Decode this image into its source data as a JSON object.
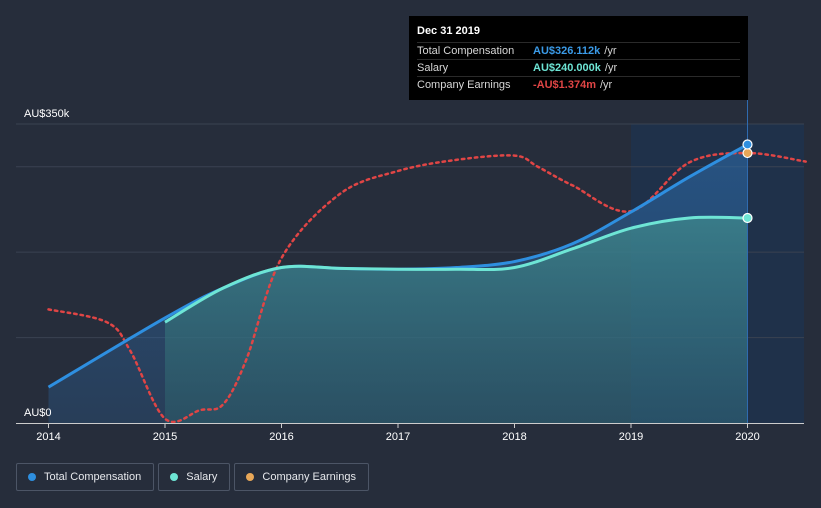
{
  "tooltip": {
    "date": "Dec 31 2019",
    "rows": [
      {
        "label": "Total Compensation",
        "value": "AU$326.112k",
        "unit": "/yr",
        "color": "#3b9be8"
      },
      {
        "label": "Salary",
        "value": "AU$240.000k",
        "unit": "/yr",
        "color": "#6ee5d5"
      },
      {
        "label": "Company Earnings",
        "value": "-AU$1.374m",
        "unit": "/yr",
        "color": "#e04545"
      }
    ]
  },
  "legend": [
    {
      "label": "Total Compensation",
      "color": "#2e8fe0"
    },
    {
      "label": "Salary",
      "color": "#6ee5d5"
    },
    {
      "label": "Company Earnings",
      "color": "#e8a758"
    }
  ],
  "chart_data": {
    "type": "line",
    "title": "",
    "xlabel": "",
    "ylabel": "",
    "y_labels": [
      "AU$350k",
      "AU$0"
    ],
    "ylim": [
      0,
      350
    ],
    "xlim": [
      2014,
      2020.5
    ],
    "x_ticks": [
      "2014",
      "2015",
      "2016",
      "2017",
      "2018",
      "2019",
      "2020"
    ],
    "highlight_from": 2019,
    "series": [
      {
        "name": "Total Compensation",
        "unit": "AU$k",
        "color": "#2e8fe0",
        "x": [
          2014,
          2015,
          2015.5,
          2016,
          2016.5,
          2017,
          2017.5,
          2018,
          2018.5,
          2019,
          2019.5,
          2020
        ],
        "y": [
          42,
          123,
          158,
          182,
          181,
          180,
          182,
          189,
          210,
          247,
          288,
          326
        ]
      },
      {
        "name": "Salary",
        "unit": "AU$k",
        "color": "#6ee5d5",
        "x": [
          2015,
          2015.5,
          2016,
          2016.5,
          2017,
          2017.5,
          2018,
          2018.5,
          2019,
          2019.5,
          2020
        ],
        "y": [
          118,
          158,
          182,
          181,
          180,
          180,
          182,
          204,
          228,
          240,
          240
        ]
      },
      {
        "name": "Company Earnings",
        "unit": "scaled",
        "color": "#e04545",
        "x": [
          2014,
          2014.5,
          2014.7,
          2015,
          2015.3,
          2015.5,
          2015.7,
          2016,
          2016.5,
          2017,
          2017.5,
          2018,
          2018.2,
          2018.5,
          2019,
          2019.5,
          2020,
          2020.5
        ],
        "y": [
          133,
          118,
          85,
          5,
          15,
          22,
          75,
          193,
          268,
          295,
          308,
          313,
          300,
          278,
          248,
          305,
          316,
          306
        ]
      }
    ],
    "end_point_date": "Dec 31 2019"
  }
}
